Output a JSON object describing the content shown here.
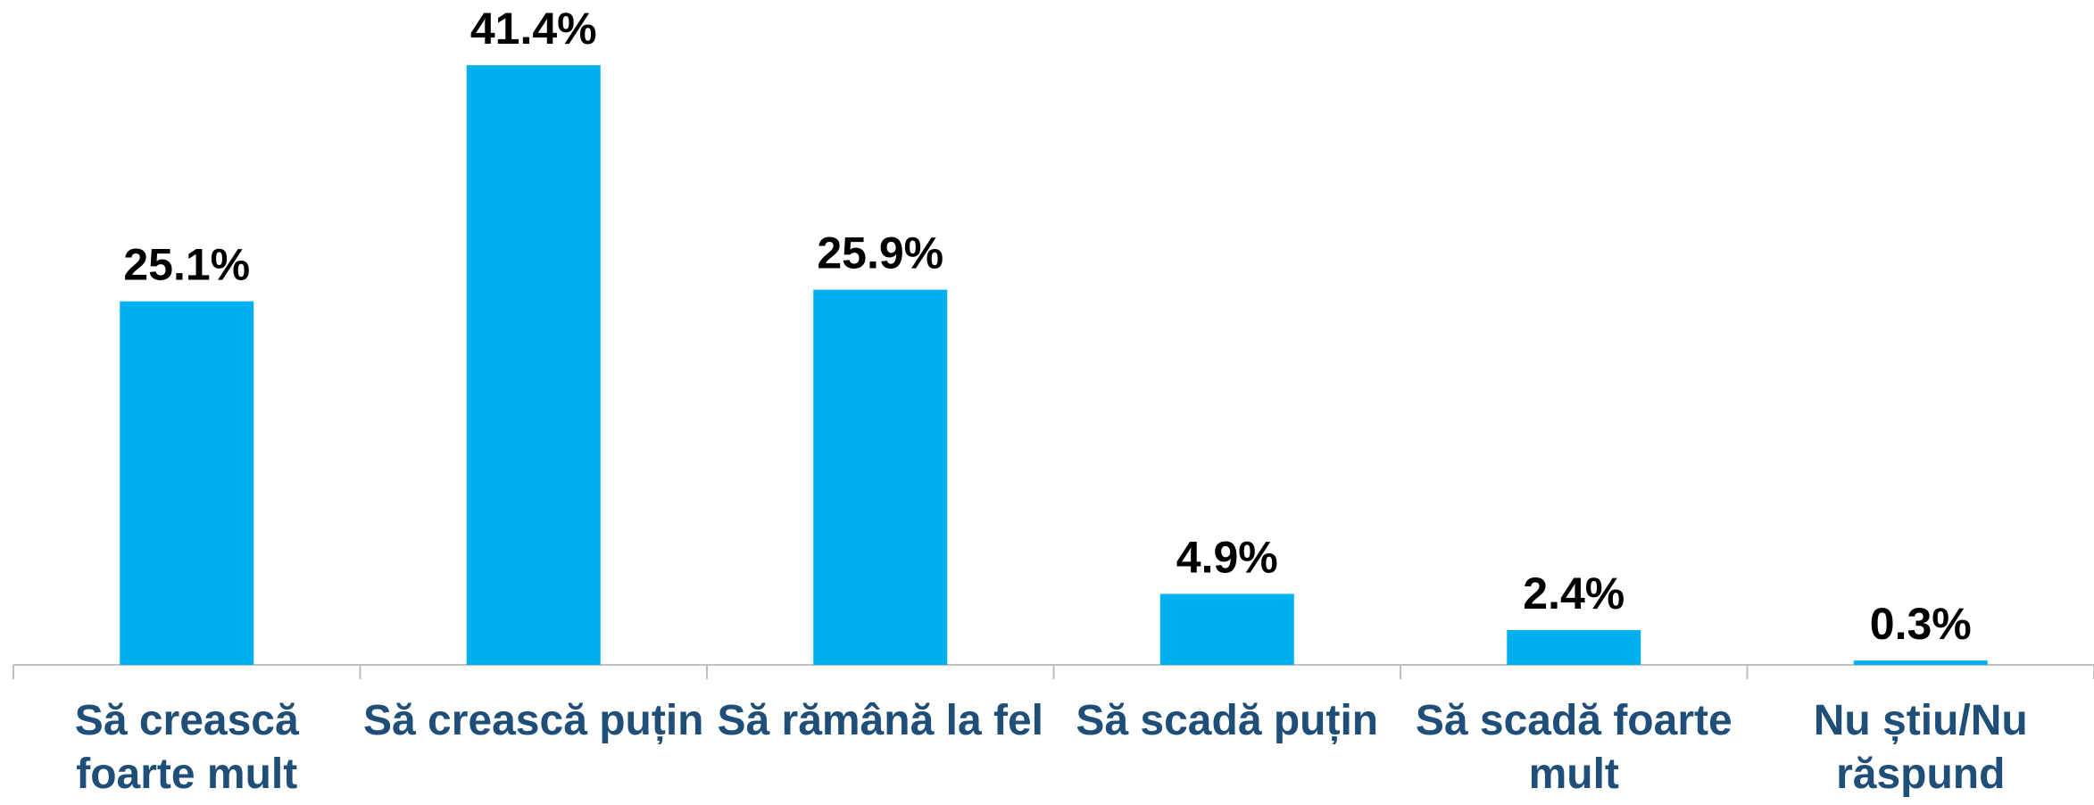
{
  "chart_data": {
    "type": "bar",
    "categories": [
      "Să crească foarte mult",
      "Să crească puțin",
      "Să rămână la fel",
      "Să scadă puțin",
      "Să scadă foarte mult",
      "Nu știu/Nu răspund"
    ],
    "values": [
      25.1,
      41.4,
      25.9,
      4.9,
      2.4,
      0.3
    ],
    "value_labels": [
      "25.1%",
      "41.4%",
      "25.9%",
      "4.9%",
      "2.4%",
      "0.3%"
    ],
    "color": "#00b0f0",
    "grid": false
  }
}
